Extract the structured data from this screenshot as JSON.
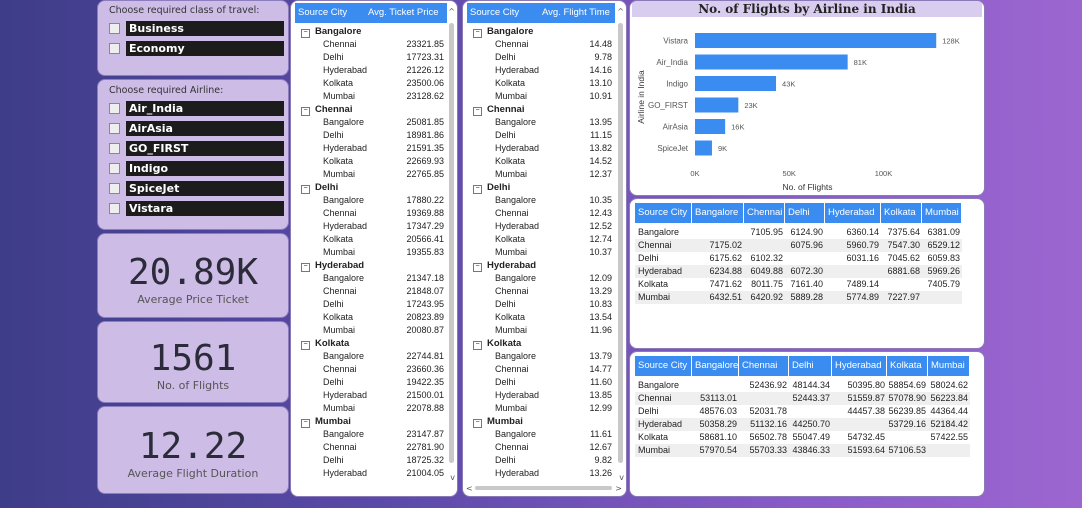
{
  "class_slicer": {
    "title": "Choose required class of travel:",
    "options": [
      "Business",
      "Economy"
    ]
  },
  "airline_slicer": {
    "title": "Choose required Airline:",
    "options": [
      "Air_India",
      "AirAsia",
      "GO_FIRST",
      "Indigo",
      "SpiceJet",
      "Vistara"
    ]
  },
  "kpis": [
    {
      "value": "20.89K",
      "label": "Average Price Ticket"
    },
    {
      "value": "1561",
      "label": "No. of Flights"
    },
    {
      "value": "12.22",
      "label": "Average Flight Duration"
    }
  ],
  "price_matrix": {
    "headers": [
      "Source City",
      "Avg. Ticket Price"
    ],
    "groups": [
      {
        "city": "Bangalore",
        "rows": [
          [
            "Chennai",
            "23321.85"
          ],
          [
            "Delhi",
            "17723.31"
          ],
          [
            "Hyderabad",
            "21226.12"
          ],
          [
            "Kolkata",
            "23500.06"
          ],
          [
            "Mumbai",
            "23128.62"
          ]
        ]
      },
      {
        "city": "Chennai",
        "rows": [
          [
            "Bangalore",
            "25081.85"
          ],
          [
            "Delhi",
            "18981.86"
          ],
          [
            "Hyderabad",
            "21591.35"
          ],
          [
            "Kolkata",
            "22669.93"
          ],
          [
            "Mumbai",
            "22765.85"
          ]
        ]
      },
      {
        "city": "Delhi",
        "rows": [
          [
            "Bangalore",
            "17880.22"
          ],
          [
            "Chennai",
            "19369.88"
          ],
          [
            "Hyderabad",
            "17347.29"
          ],
          [
            "Kolkata",
            "20566.41"
          ],
          [
            "Mumbai",
            "19355.83"
          ]
        ]
      },
      {
        "city": "Hyderabad",
        "rows": [
          [
            "Bangalore",
            "21347.18"
          ],
          [
            "Chennai",
            "21848.07"
          ],
          [
            "Delhi",
            "17243.95"
          ],
          [
            "Kolkata",
            "20823.89"
          ],
          [
            "Mumbai",
            "20080.87"
          ]
        ]
      },
      {
        "city": "Kolkata",
        "rows": [
          [
            "Bangalore",
            "22744.81"
          ],
          [
            "Chennai",
            "23660.36"
          ],
          [
            "Delhi",
            "19422.35"
          ],
          [
            "Hyderabad",
            "21500.01"
          ],
          [
            "Mumbai",
            "22078.88"
          ]
        ]
      },
      {
        "city": "Mumbai",
        "rows": [
          [
            "Bangalore",
            "23147.87"
          ],
          [
            "Chennai",
            "22781.90"
          ],
          [
            "Delhi",
            "18725.32"
          ],
          [
            "Hyderabad",
            "21004.05"
          ]
        ]
      }
    ]
  },
  "time_matrix": {
    "headers": [
      "Source City",
      "Avg. Flight Time"
    ],
    "groups": [
      {
        "city": "Bangalore",
        "rows": [
          [
            "Chennai",
            "14.48"
          ],
          [
            "Delhi",
            "9.78"
          ],
          [
            "Hyderabad",
            "14.16"
          ],
          [
            "Kolkata",
            "13.10"
          ],
          [
            "Mumbai",
            "10.91"
          ]
        ]
      },
      {
        "city": "Chennai",
        "rows": [
          [
            "Bangalore",
            "13.95"
          ],
          [
            "Delhi",
            "11.15"
          ],
          [
            "Hyderabad",
            "13.82"
          ],
          [
            "Kolkata",
            "14.52"
          ],
          [
            "Mumbai",
            "12.37"
          ]
        ]
      },
      {
        "city": "Delhi",
        "rows": [
          [
            "Bangalore",
            "10.35"
          ],
          [
            "Chennai",
            "12.43"
          ],
          [
            "Hyderabad",
            "12.52"
          ],
          [
            "Kolkata",
            "12.74"
          ],
          [
            "Mumbai",
            "10.37"
          ]
        ]
      },
      {
        "city": "Hyderabad",
        "rows": [
          [
            "Bangalore",
            "12.09"
          ],
          [
            "Chennai",
            "13.29"
          ],
          [
            "Delhi",
            "10.83"
          ],
          [
            "Kolkata",
            "13.54"
          ],
          [
            "Mumbai",
            "11.96"
          ]
        ]
      },
      {
        "city": "Kolkata",
        "rows": [
          [
            "Bangalore",
            "13.79"
          ],
          [
            "Chennai",
            "14.77"
          ],
          [
            "Delhi",
            "11.60"
          ],
          [
            "Hyderabad",
            "13.85"
          ],
          [
            "Mumbai",
            "12.99"
          ]
        ]
      },
      {
        "city": "Mumbai",
        "rows": [
          [
            "Bangalore",
            "11.61"
          ],
          [
            "Chennai",
            "12.67"
          ],
          [
            "Delhi",
            "9.82"
          ],
          [
            "Hyderabad",
            "13.26"
          ]
        ]
      }
    ]
  },
  "chart_data": {
    "type": "bar",
    "orientation": "horizontal",
    "title": "No. of Flights by Airline in India",
    "xlabel": "No. of Flights",
    "ylabel": "Airline in India",
    "categories": [
      "Vistara",
      "Air_India",
      "Indigo",
      "GO_FIRST",
      "AirAsia",
      "SpiceJet"
    ],
    "values": [
      128000,
      81000,
      43000,
      23000,
      16000,
      9000
    ],
    "data_labels": [
      "128K",
      "81K",
      "43K",
      "23K",
      "16K",
      "9K"
    ],
    "xticks": [
      "0K",
      "50K",
      "100K"
    ],
    "xlim": [
      0,
      130000
    ],
    "bar_color": "#3a8cf0"
  },
  "cross_table_1": {
    "headers": [
      "Source City",
      "Bangalore",
      "Chennai",
      "Delhi",
      "Hyderabad",
      "Kolkata",
      "Mumbai"
    ],
    "rows": [
      [
        "Bangalore",
        "",
        "7105.95",
        "6124.90",
        "6360.14",
        "7375.64",
        "6381.09"
      ],
      [
        "Chennai",
        "7175.02",
        "",
        "6075.96",
        "5960.79",
        "7547.30",
        "6529.12"
      ],
      [
        "Delhi",
        "6175.62",
        "6102.32",
        "",
        "6031.16",
        "7045.62",
        "6059.83"
      ],
      [
        "Hyderabad",
        "6234.88",
        "6049.88",
        "6072.30",
        "",
        "6881.68",
        "5969.26"
      ],
      [
        "Kolkata",
        "7471.62",
        "8011.75",
        "7161.40",
        "7489.14",
        "",
        "7405.79"
      ],
      [
        "Mumbai",
        "6432.51",
        "6420.92",
        "5889.28",
        "5774.89",
        "7227.97",
        ""
      ]
    ]
  },
  "cross_table_2": {
    "headers": [
      "Source City",
      "Bangalore",
      "Chennai",
      "Delhi",
      "Hyderabad",
      "Kolkata",
      "Mumbai"
    ],
    "rows": [
      [
        "Bangalore",
        "",
        "52436.92",
        "48144.34",
        "50395.80",
        "58854.69",
        "58024.62"
      ],
      [
        "Chennai",
        "53113.01",
        "",
        "52443.37",
        "51559.87",
        "57078.90",
        "56223.84"
      ],
      [
        "Delhi",
        "48576.03",
        "52031.78",
        "",
        "44457.38",
        "56239.85",
        "44364.44"
      ],
      [
        "Hyderabad",
        "50358.29",
        "51132.16",
        "44250.70",
        "",
        "53729.16",
        "52184.42"
      ],
      [
        "Kolkata",
        "58681.10",
        "56502.78",
        "55047.49",
        "54732.45",
        "",
        "57422.55"
      ],
      [
        "Mumbai",
        "57970.54",
        "55703.33",
        "43846.33",
        "51593.64",
        "57106.53",
        ""
      ]
    ]
  }
}
